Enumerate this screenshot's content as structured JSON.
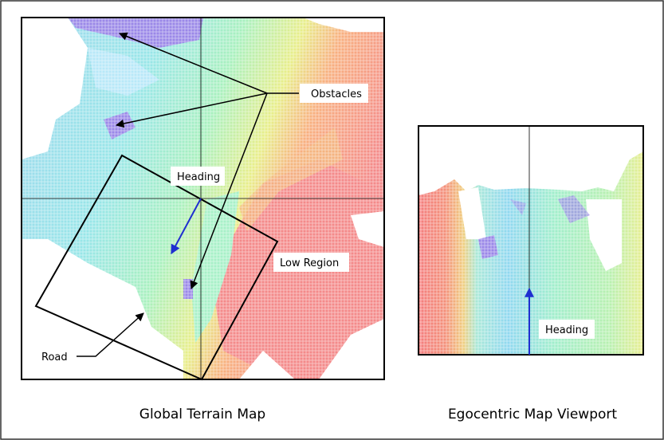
{
  "diagram": {
    "global_caption": "Global Terrain Map",
    "ego_caption": "Egocentric Map Viewport",
    "labels": {
      "obstacles": "Obstacles",
      "heading_global": "Heading",
      "low_region": "Low Region",
      "road": "Road",
      "heading_ego": "Heading"
    },
    "colors": {
      "heading_arrow": "#1f2fd0",
      "elevation_high": "#8a6fe0",
      "elevation_mid": "#8ee8c8",
      "elevation_low": "#f47e7e",
      "frame": "#000000"
    }
  }
}
